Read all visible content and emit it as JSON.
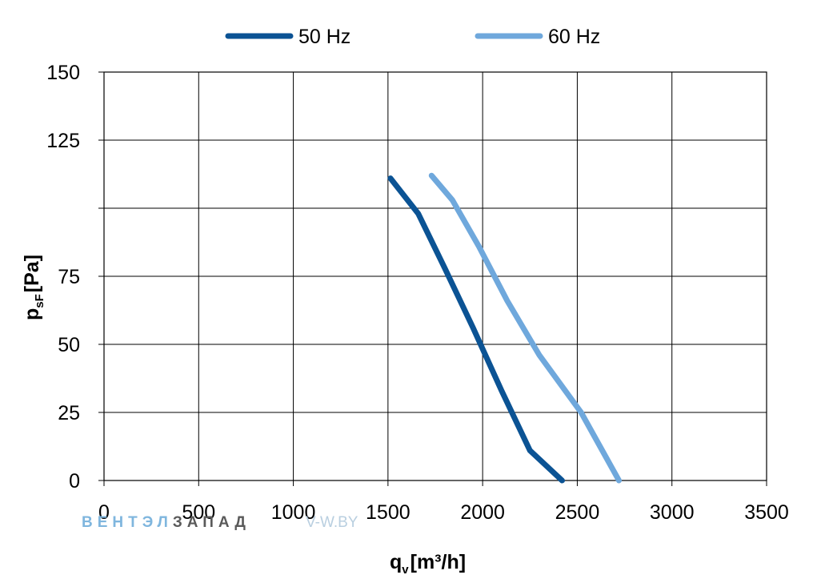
{
  "chart_data": {
    "type": "line",
    "xlabel": {
      "main": "q",
      "sub": "v",
      "unit": "[m³/h]"
    },
    "ylabel": {
      "main": "p",
      "sub": "sF",
      "unit": "[Pa]"
    },
    "xlim": [
      0,
      3500
    ],
    "ylim": [
      0,
      150
    ],
    "x_ticks": [
      {
        "value": 0,
        "label": "0"
      },
      {
        "value": 500,
        "label": "500"
      },
      {
        "value": 1000,
        "label": "1000"
      },
      {
        "value": 1500,
        "label": "1500"
      },
      {
        "value": 2000,
        "label": "2000"
      },
      {
        "value": 2500,
        "label": "2500"
      },
      {
        "value": 3000,
        "label": "3000"
      },
      {
        "value": 3500,
        "label": "3500"
      }
    ],
    "y_ticks": [
      {
        "value": 0,
        "label": "0"
      },
      {
        "value": 25,
        "label": "25"
      },
      {
        "value": 50,
        "label": "50"
      },
      {
        "value": 75,
        "label": "75"
      },
      {
        "value": 100,
        "label": ""
      },
      {
        "value": 125,
        "label": "125"
      },
      {
        "value": 150,
        "label": "150"
      }
    ],
    "grid": true,
    "legend_position": "top",
    "series": [
      {
        "name": "50 Hz",
        "color": "#0b5394",
        "x": [
          1513,
          1660,
          1800,
          1950,
          2100,
          2250,
          2420
        ],
        "y": [
          111,
          98,
          78,
          56,
          33,
          11,
          0
        ]
      },
      {
        "name": "60 Hz",
        "color": "#6fa8dc",
        "x": [
          1730,
          1840,
          1980,
          2130,
          2300,
          2520,
          2720
        ],
        "y": [
          112,
          103,
          86,
          66,
          46,
          25,
          0
        ]
      }
    ]
  },
  "watermark": {
    "brand_part1": "ВЕНТЭЛ",
    "brand_part2": "ЗАПАД",
    "site": "V-W.BY"
  }
}
